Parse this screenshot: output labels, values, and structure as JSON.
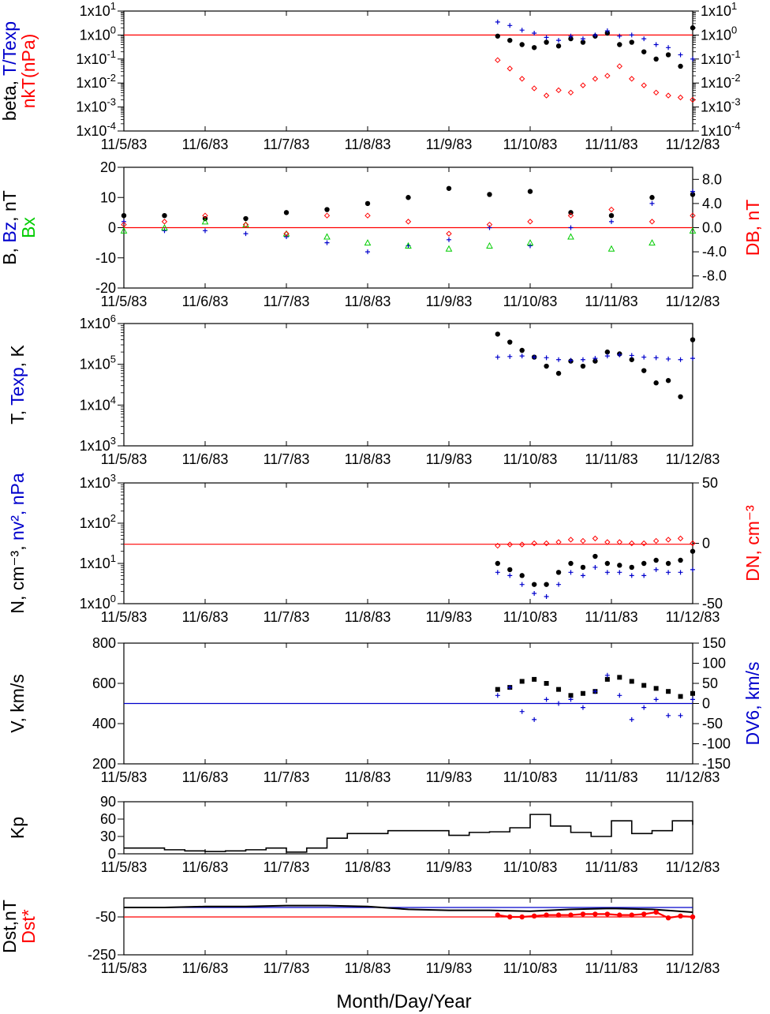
{
  "xaxis": {
    "ticks": [
      "11/5/83",
      "11/6/83",
      "11/7/83",
      "11/8/83",
      "11/9/83",
      "11/10/83",
      "11/11/83",
      "11/12/83"
    ],
    "title": "Month/Day/Year"
  },
  "colors": {
    "black": "#000000",
    "red": "#ff0000",
    "blue": "#0000cc",
    "green": "#00cc00"
  },
  "chart_data": [
    {
      "id": "beta",
      "type": "scatter",
      "ylabel_left": [
        {
          "text": "beta, ",
          "color": "black"
        },
        {
          "text": "T/Texp",
          "color": "blue"
        }
      ],
      "ylabel_left2": [
        {
          "text": "nkT(nPa)",
          "color": "red"
        }
      ],
      "ylog": true,
      "ylim": [
        0.0001,
        10
      ],
      "yticks": [
        {
          "v": 10,
          "label": "1x10^1"
        },
        {
          "v": 1,
          "label": "1x10^0"
        },
        {
          "v": 0.1,
          "label": "1x10^-1"
        },
        {
          "v": 0.01,
          "label": "1x10^-2"
        },
        {
          "v": 0.001,
          "label": "1x10^-3"
        },
        {
          "v": 0.0001,
          "label": "1x10^-4"
        }
      ],
      "right_ticks_mirror": true,
      "hline": {
        "v": 1,
        "color": "red"
      },
      "series": [
        {
          "label": "beta",
          "color": "black",
          "marker": "dot",
          "x": [
            4.6,
            4.75,
            4.9,
            5.05,
            5.2,
            5.35,
            5.5,
            5.65,
            5.8,
            5.95,
            6.1,
            6.25,
            6.4,
            6.55,
            6.7,
            6.85,
            7.0
          ],
          "y": [
            0.9,
            0.6,
            0.4,
            0.3,
            0.5,
            0.35,
            0.7,
            0.5,
            0.9,
            1.2,
            0.4,
            0.5,
            0.2,
            0.1,
            0.15,
            0.05,
            2.0
          ]
        },
        {
          "label": "T/Texp",
          "color": "blue",
          "marker": "plus",
          "x": [
            4.6,
            4.75,
            4.9,
            5.05,
            5.2,
            5.35,
            5.5,
            5.65,
            5.8,
            5.95,
            6.1,
            6.25,
            6.4,
            6.55,
            6.7,
            6.85,
            7.0
          ],
          "y": [
            3.5,
            2.5,
            1.6,
            1.2,
            0.8,
            0.6,
            0.9,
            0.7,
            1.0,
            1.5,
            0.9,
            1.0,
            0.7,
            0.4,
            0.3,
            0.15,
            0.1
          ]
        },
        {
          "label": "nkT",
          "color": "red",
          "marker": "diamond",
          "x": [
            4.6,
            4.75,
            4.9,
            5.05,
            5.2,
            5.35,
            5.5,
            5.65,
            5.8,
            5.95,
            6.1,
            6.25,
            6.4,
            6.55,
            6.7,
            6.85,
            7.0
          ],
          "y": [
            0.09,
            0.04,
            0.015,
            0.006,
            0.003,
            0.005,
            0.004,
            0.008,
            0.015,
            0.02,
            0.05,
            0.015,
            0.008,
            0.004,
            0.003,
            0.0025,
            0.002
          ]
        }
      ]
    },
    {
      "id": "bfield",
      "type": "scatter",
      "ylabel_left": [
        {
          "text": "B, ",
          "color": "black"
        },
        {
          "text": "Bz",
          "color": "blue"
        },
        {
          "text": ", nT",
          "color": "black"
        }
      ],
      "ylabel_left2": [
        {
          "text": "Bx",
          "color": "green"
        }
      ],
      "ylabel_right": [
        {
          "text": "DB, nT",
          "color": "red"
        }
      ],
      "ylim": [
        -20,
        20
      ],
      "yticks": [
        {
          "v": 20,
          "label": "20"
        },
        {
          "v": 10,
          "label": "10"
        },
        {
          "v": 0,
          "label": "0"
        },
        {
          "v": -10,
          "label": "-10"
        },
        {
          "v": -20,
          "label": "-20"
        }
      ],
      "yright_lim": [
        -10,
        10
      ],
      "yright_ticks": [
        {
          "v": 8,
          "label": "8.0"
        },
        {
          "v": 4,
          "label": "4.0"
        },
        {
          "v": 0,
          "label": "0.0"
        },
        {
          "v": -4,
          "label": "-4.0"
        },
        {
          "v": -8,
          "label": "-8.0"
        }
      ],
      "hline": {
        "v": 0,
        "color": "red"
      },
      "series": [
        {
          "label": "B",
          "color": "black",
          "marker": "dot",
          "x": [
            0.0,
            0.5,
            1.0,
            1.5,
            2.0,
            2.5,
            3.0,
            3.5,
            4.0,
            4.5,
            5.0,
            5.5,
            6.0,
            6.5,
            7.0
          ],
          "y": [
            4,
            4,
            3,
            3,
            5,
            6,
            8,
            10,
            13,
            11,
            12,
            5,
            4,
            10,
            11
          ]
        },
        {
          "label": "Bz",
          "color": "blue",
          "marker": "plus",
          "x": [
            0.0,
            0.5,
            1.0,
            1.5,
            2.0,
            2.5,
            3.0,
            3.5,
            4.0,
            4.5,
            5.0,
            5.5,
            6.0,
            6.5,
            7.0
          ],
          "y": [
            2,
            -1,
            -1,
            -2,
            -3,
            -5,
            -8,
            -6,
            -4,
            0,
            -6,
            0,
            2,
            8,
            12
          ]
        },
        {
          "label": "Bx",
          "color": "green",
          "marker": "triangle",
          "x": [
            0.0,
            0.5,
            1.0,
            1.5,
            2.0,
            2.5,
            3.0,
            3.5,
            4.0,
            4.5,
            5.0,
            5.5,
            6.0,
            6.5,
            7.0
          ],
          "y": [
            -1,
            0,
            2,
            1,
            -2,
            -3,
            -5,
            -6,
            -7,
            -6,
            -5,
            -3,
            -7,
            -5,
            -1
          ]
        },
        {
          "label": "DB",
          "color": "red",
          "marker": "diamond",
          "axis": "right",
          "x": [
            0.0,
            0.5,
            1.0,
            1.5,
            2.0,
            2.5,
            3.0,
            3.5,
            4.0,
            4.5,
            5.0,
            5.5,
            6.0,
            6.5,
            7.0
          ],
          "y": [
            0.5,
            1.0,
            2.0,
            0.5,
            -1.0,
            2.0,
            2.0,
            1.0,
            -1.0,
            0.5,
            1.0,
            2.0,
            3.0,
            1.0,
            2.0
          ]
        }
      ]
    },
    {
      "id": "temperature",
      "type": "scatter",
      "ylabel_left": [
        {
          "text": "T, ",
          "color": "black"
        },
        {
          "text": "Texp",
          "color": "blue"
        },
        {
          "text": ", K",
          "color": "black"
        }
      ],
      "ylog": true,
      "ylim": [
        1000,
        1000000
      ],
      "yticks": [
        {
          "v": 1000000,
          "label": "1x10^6"
        },
        {
          "v": 100000,
          "label": "1x10^5"
        },
        {
          "v": 10000,
          "label": "1x10^4"
        },
        {
          "v": 1000,
          "label": "1x10^3"
        }
      ],
      "series": [
        {
          "label": "T",
          "color": "black",
          "marker": "dot",
          "x": [
            4.6,
            4.75,
            4.9,
            5.05,
            5.2,
            5.35,
            5.5,
            5.65,
            5.8,
            5.95,
            6.1,
            6.25,
            6.4,
            6.55,
            6.7,
            6.85,
            7.0
          ],
          "y": [
            550000,
            350000,
            220000,
            150000,
            90000,
            60000,
            120000,
            90000,
            120000,
            200000,
            180000,
            130000,
            70000,
            35000,
            40000,
            16000,
            400000
          ]
        },
        {
          "label": "Texp",
          "color": "blue",
          "marker": "plus",
          "x": [
            4.6,
            4.75,
            4.9,
            5.05,
            5.2,
            5.35,
            5.5,
            5.65,
            5.8,
            5.95,
            6.1,
            6.25,
            6.4,
            6.55,
            6.7,
            6.85,
            7.0
          ],
          "y": [
            150000,
            155000,
            160000,
            150000,
            145000,
            130000,
            125000,
            130000,
            140000,
            160000,
            170000,
            165000,
            150000,
            145000,
            135000,
            130000,
            140000
          ]
        }
      ]
    },
    {
      "id": "density",
      "type": "scatter",
      "ylabel_left": [
        {
          "text": "N, cm⁻³, ",
          "color": "black"
        },
        {
          "text": "nv², nPa",
          "color": "blue"
        }
      ],
      "ylabel_right": [
        {
          "text": "DN, cm⁻³",
          "color": "red"
        }
      ],
      "ylog": true,
      "ylim": [
        1,
        1000
      ],
      "yticks": [
        {
          "v": 1000,
          "label": "1x10^3"
        },
        {
          "v": 100,
          "label": "1x10^2"
        },
        {
          "v": 10,
          "label": "1x10^1"
        },
        {
          "v": 1,
          "label": "1x10^0"
        }
      ],
      "yright_lim": [
        -50,
        50
      ],
      "yright_ticks": [
        {
          "v": 50,
          "label": "50"
        },
        {
          "v": 0,
          "label": "0"
        },
        {
          "v": -50,
          "label": "-50"
        }
      ],
      "hline": {
        "v": 30,
        "color": "red"
      },
      "series": [
        {
          "label": "N",
          "color": "black",
          "marker": "dot",
          "x": [
            4.6,
            4.75,
            4.9,
            5.05,
            5.2,
            5.35,
            5.5,
            5.65,
            5.8,
            5.95,
            6.1,
            6.25,
            6.4,
            6.55,
            6.7,
            6.85,
            7.0
          ],
          "y": [
            10,
            7,
            5,
            3,
            3,
            6,
            10,
            8,
            15,
            10,
            9,
            8,
            10,
            12,
            10,
            12,
            20
          ]
        },
        {
          "label": "nv2",
          "color": "blue",
          "marker": "plus",
          "x": [
            4.6,
            4.75,
            4.9,
            5.05,
            5.2,
            5.35,
            5.5,
            5.65,
            5.8,
            5.95,
            6.1,
            6.25,
            6.4,
            6.55,
            6.7,
            6.85,
            7.0
          ],
          "y": [
            6,
            5,
            3,
            1.8,
            1.5,
            3,
            6,
            5,
            8,
            6,
            6,
            5,
            5,
            7,
            6,
            6,
            7
          ]
        },
        {
          "label": "DN",
          "color": "red",
          "marker": "diamond",
          "axis": "right",
          "x": [
            4.6,
            4.75,
            4.9,
            5.05,
            5.2,
            5.35,
            5.5,
            5.65,
            5.8,
            5.95,
            6.1,
            6.25,
            6.4,
            6.55,
            6.7,
            6.85,
            7.0
          ],
          "y": [
            -2,
            -1,
            -1,
            0,
            0,
            1,
            3,
            2,
            4,
            1,
            1,
            0,
            0,
            2,
            3,
            4,
            0
          ]
        }
      ]
    },
    {
      "id": "velocity",
      "type": "scatter",
      "ylabel_left": [
        {
          "text": "V, km/s",
          "color": "black"
        }
      ],
      "ylabel_right": [
        {
          "text": "DV6, km/s",
          "color": "blue"
        }
      ],
      "ylim": [
        200,
        800
      ],
      "yticks": [
        {
          "v": 800,
          "label": "800"
        },
        {
          "v": 600,
          "label": "600"
        },
        {
          "v": 400,
          "label": "400"
        },
        {
          "v": 200,
          "label": "200"
        }
      ],
      "yright_lim": [
        -150,
        150
      ],
      "yright_ticks": [
        {
          "v": 150,
          "label": "150"
        },
        {
          "v": 100,
          "label": "100"
        },
        {
          "v": 50,
          "label": "50"
        },
        {
          "v": 0,
          "label": "0"
        },
        {
          "v": -50,
          "label": "-50"
        },
        {
          "v": -100,
          "label": "-100"
        },
        {
          "v": -150,
          "label": "-150"
        }
      ],
      "hline": {
        "v": 500,
        "color": "blue"
      },
      "series": [
        {
          "label": "V",
          "color": "black",
          "marker": "square",
          "x": [
            4.6,
            4.75,
            4.9,
            5.05,
            5.2,
            5.35,
            5.5,
            5.65,
            5.8,
            5.95,
            6.1,
            6.25,
            6.4,
            6.55,
            6.7,
            6.85,
            7.0
          ],
          "y": [
            570,
            580,
            610,
            620,
            600,
            570,
            540,
            550,
            560,
            620,
            630,
            610,
            590,
            575,
            560,
            535,
            550
          ]
        },
        {
          "label": "DV6",
          "color": "blue",
          "marker": "plus",
          "axis": "right",
          "x": [
            4.6,
            4.75,
            4.9,
            5.05,
            5.2,
            5.35,
            5.5,
            5.65,
            5.8,
            5.95,
            6.1,
            6.25,
            6.4,
            6.55,
            6.7,
            6.85,
            7.0
          ],
          "y": [
            20,
            40,
            -20,
            -40,
            10,
            0,
            10,
            -10,
            30,
            70,
            20,
            -40,
            -10,
            10,
            -30,
            -30,
            10
          ]
        }
      ]
    },
    {
      "id": "kp",
      "type": "line",
      "ylabel_left": [
        {
          "text": "Kp",
          "color": "black"
        }
      ],
      "ylim": [
        0,
        90
      ],
      "yticks": [
        {
          "v": 90,
          "label": "90"
        },
        {
          "v": 60,
          "label": "60"
        },
        {
          "v": 30,
          "label": "30"
        },
        {
          "v": 0,
          "label": "0"
        }
      ],
      "series": [
        {
          "label": "Kp",
          "color": "black",
          "marker": "step",
          "x": [
            0.0,
            0.25,
            0.5,
            0.75,
            1.0,
            1.25,
            1.5,
            1.75,
            2.0,
            2.25,
            2.5,
            2.75,
            3.0,
            3.25,
            3.5,
            3.75,
            4.0,
            4.25,
            4.5,
            4.75,
            5.0,
            5.25,
            5.5,
            5.75,
            6.0,
            6.25,
            6.5,
            6.75,
            7.0
          ],
          "y": [
            10,
            10,
            7,
            5,
            4,
            5,
            7,
            10,
            3,
            10,
            27,
            35,
            35,
            40,
            40,
            40,
            32,
            37,
            38,
            45,
            68,
            48,
            37,
            30,
            57,
            35,
            40,
            57,
            50
          ]
        }
      ]
    },
    {
      "id": "dst",
      "type": "line",
      "ylabel_left": [
        {
          "text": "Dst,nT",
          "color": "black"
        }
      ],
      "ylabel_left2": [
        {
          "text": "Dst*",
          "color": "red"
        }
      ],
      "ylim": [
        -250,
        50
      ],
      "yticks": [
        {
          "v": -50,
          "label": "-50"
        },
        {
          "v": -250,
          "label": "-250"
        }
      ],
      "hlines": [
        {
          "v": 0,
          "color": "blue"
        },
        {
          "v": -50,
          "color": "red"
        }
      ],
      "series": [
        {
          "label": "Dst",
          "color": "black",
          "marker": "line",
          "x": [
            0.0,
            0.5,
            1.0,
            1.5,
            2.0,
            2.5,
            3.0,
            3.5,
            4.0,
            4.5,
            5.0,
            5.5,
            6.0,
            6.5,
            7.0
          ],
          "y": [
            0,
            0,
            5,
            5,
            10,
            10,
            5,
            -10,
            -15,
            -15,
            -20,
            -10,
            -5,
            -10,
            -25
          ]
        },
        {
          "label": "Dst*",
          "color": "red",
          "marker": "dot",
          "x": [
            4.6,
            4.75,
            4.9,
            5.05,
            5.2,
            5.35,
            5.5,
            5.65,
            5.8,
            5.95,
            6.1,
            6.25,
            6.4,
            6.55,
            6.7,
            6.85,
            7.0
          ],
          "y": [
            -40,
            -50,
            -50,
            -45,
            -40,
            -40,
            -40,
            -35,
            -35,
            -35,
            -40,
            -40,
            -35,
            -25,
            -55,
            -45,
            -50
          ]
        }
      ]
    }
  ]
}
